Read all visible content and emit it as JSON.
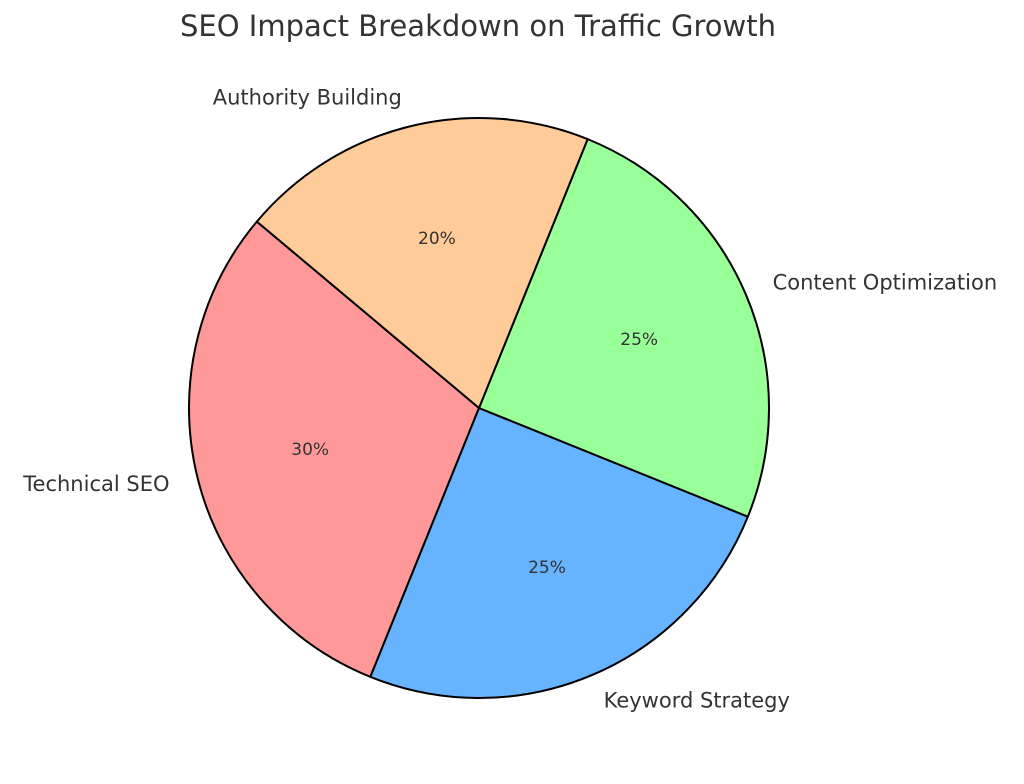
{
  "chart_data": {
    "type": "pie",
    "title": "SEO Impact Breakdown on Traffic Growth",
    "start_angle_deg": 140,
    "direction": "counterclockwise",
    "slices": [
      {
        "label": "Technical SEO",
        "value": 30,
        "pct_text": "30%",
        "color": "#ff9999"
      },
      {
        "label": "Keyword Strategy",
        "value": 25,
        "pct_text": "25%",
        "color": "#66b3ff"
      },
      {
        "label": "Content Optimization",
        "value": 25,
        "pct_text": "25%",
        "color": "#99ff99"
      },
      {
        "label": "Authority Building",
        "value": 20,
        "pct_text": "20%",
        "color": "#ffcc99"
      }
    ]
  }
}
